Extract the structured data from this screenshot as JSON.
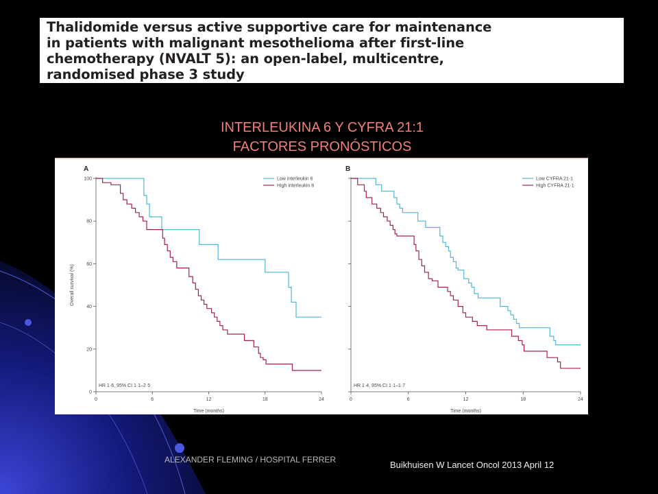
{
  "paper_title": {
    "lines": [
      "Thalidomide versus active supportive care for maintenance",
      "in patients with malignant mesothelioma after first-line",
      "chemotherapy (NVALT 5): an open-label, multicentre,",
      "randomised phase 3 study"
    ]
  },
  "slide_heading": {
    "line1": "INTERLEUKINA 6  Y  CYFRA 21:1",
    "line2": "FACTORES PRONÓSTICOS"
  },
  "footer": {
    "left": "ALEXANDER FLEMING / HOSPITAL  FERRER",
    "right": "Buikhuisen W Lancet Oncol 2013 April 12"
  },
  "colors": {
    "background": "#000000",
    "heading": "#f1807b",
    "low_series": "#4cb8d6",
    "high_series": "#a3204f",
    "axis": "#555555"
  },
  "chart_data": [
    {
      "type": "line",
      "panel_label": "A",
      "xlabel": "Time (months)",
      "ylabel": "Overall survival (%)",
      "xlim": [
        0,
        24
      ],
      "ylim": [
        0,
        100
      ],
      "x_ticks": [
        0,
        6,
        12,
        18,
        24
      ],
      "y_ticks": [
        0,
        20,
        40,
        60,
        80,
        100
      ],
      "legend_position": "top-right",
      "annotation": "HR 1·6, 95% CI 1·1–2·5",
      "series": [
        {
          "name": "Low interleukin 6",
          "color": "#4cb8d6",
          "x": [
            0,
            5.1,
            5.4,
            5.7,
            6.5,
            7.0,
            11.0,
            13.0,
            18.0,
            20.5,
            20.8,
            21.3,
            24.0
          ],
          "y": [
            100,
            92,
            88,
            82,
            82,
            76,
            69,
            62,
            56,
            49,
            42,
            35,
            35
          ]
        },
        {
          "name": "High interleukin 6",
          "color": "#a3204f",
          "x": [
            0,
            0.7,
            1.6,
            2.6,
            2.9,
            3.3,
            3.8,
            4.2,
            4.6,
            5.0,
            5.4,
            6.5,
            7.1,
            7.3,
            7.6,
            7.9,
            8.2,
            8.6,
            9.9,
            10.3,
            10.6,
            10.9,
            11.2,
            11.5,
            11.8,
            12.3,
            12.6,
            12.9,
            13.2,
            13.5,
            14.0,
            14.4,
            15.8,
            16.8,
            17.3,
            17.5,
            17.8,
            18.1,
            18.4,
            20.9,
            22.5,
            24.0
          ],
          "y": [
            100,
            98,
            97,
            93,
            90,
            88,
            86,
            84,
            82,
            80,
            76,
            76,
            72,
            69,
            66,
            63,
            61,
            58,
            54,
            51,
            48,
            45,
            43,
            41,
            39,
            37,
            35,
            33,
            31,
            29,
            27,
            27,
            24,
            21,
            18,
            16,
            15,
            13,
            13,
            10,
            10,
            10
          ]
        }
      ]
    },
    {
      "type": "line",
      "panel_label": "B",
      "xlabel": "Time (months)",
      "ylabel": "",
      "xlim": [
        0,
        24
      ],
      "ylim": [
        0,
        100
      ],
      "x_ticks": [
        0,
        6,
        12,
        18,
        24
      ],
      "y_ticks": [
        0,
        20,
        40,
        60,
        80,
        100
      ],
      "legend_position": "top-right",
      "annotation": "HR 1·4, 95% CI 1·1–1·7",
      "series": [
        {
          "name": "Low CYFRA 21·1",
          "color": "#4cb8d6",
          "x": [
            0,
            2.6,
            3.2,
            4.5,
            4.8,
            5.1,
            5.4,
            5.8,
            7.0,
            7.8,
            9.0,
            9.3,
            9.6,
            9.9,
            10.2,
            10.4,
            10.7,
            11.0,
            11.2,
            11.8,
            12.3,
            12.6,
            12.9,
            13.3,
            13.6,
            14.3,
            15.6,
            16.4,
            16.7,
            17.0,
            17.3,
            17.6,
            18.1,
            20.8,
            21.2,
            21.4,
            24.0
          ],
          "y": [
            100,
            97,
            94,
            91,
            88,
            86,
            84,
            84,
            80,
            77,
            77,
            73,
            70,
            68,
            66,
            63,
            61,
            58,
            57,
            53,
            51,
            49,
            46,
            44,
            44,
            44,
            40,
            38,
            36,
            34,
            32,
            30,
            30,
            26,
            24,
            22,
            22
          ]
        },
        {
          "name": "High CYFRA 21·1",
          "color": "#a3204f",
          "x": [
            0,
            0.7,
            1.4,
            1.6,
            2.2,
            2.7,
            3.1,
            3.4,
            3.8,
            4.1,
            4.4,
            4.6,
            4.8,
            5.6,
            6.6,
            6.8,
            7.1,
            7.4,
            7.7,
            8.1,
            8.5,
            8.9,
            9.1,
            9.8,
            10.1,
            10.4,
            10.7,
            11.2,
            11.7,
            12.0,
            12.7,
            13.2,
            14.2,
            16.2,
            16.8,
            17.5,
            17.9,
            18.1,
            18.4,
            20.5,
            21.6,
            21.9,
            24.0
          ],
          "y": [
            100,
            97,
            94,
            91,
            88,
            86,
            84,
            82,
            80,
            78,
            76,
            74,
            73,
            73,
            69,
            66,
            62,
            59,
            56,
            53,
            52,
            52,
            49,
            49,
            47,
            45,
            43,
            40,
            37,
            35,
            33,
            31,
            29,
            29,
            26,
            24,
            22,
            19,
            19,
            16,
            14,
            11,
            11
          ]
        }
      ]
    }
  ]
}
